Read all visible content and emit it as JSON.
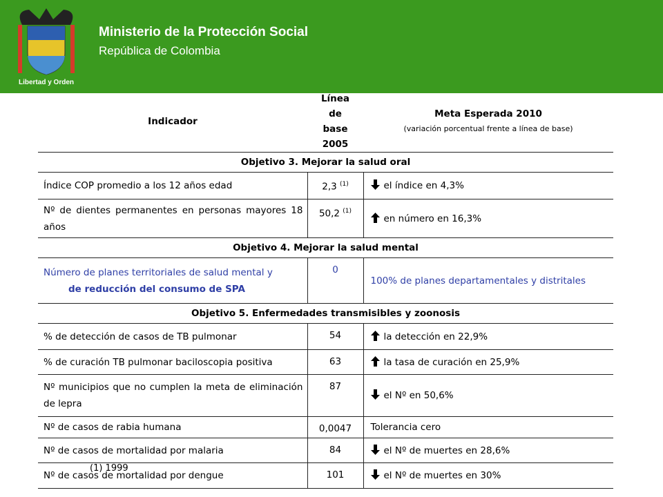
{
  "header": {
    "title": "Ministerio de la Protección Social",
    "subtitle": "República de Colombia",
    "logo_caption": "Libertad y Orden"
  },
  "table": {
    "columns": [
      "Indicador",
      "Línea de base 2005",
      "Meta Esperada 2010"
    ],
    "columns_note": "(variación porcentual frente a línea de base)",
    "sections": [
      {
        "title": "Objetivo 3. Mejorar la salud oral",
        "rows": [
          {
            "indicator": "Índice COP promedio a los 12 años edad",
            "baseline": "2,3",
            "baseline_note": "(1)",
            "goal": "el índice en 4,3%"
          },
          {
            "indicator": "Nº de dientes permanentes en personas mayores 18 años",
            "baseline": "50,2",
            "baseline_note": "(1)",
            "goal": "en número en 16,3%"
          }
        ]
      },
      {
        "title": "Objetivo 4. Mejorar la salud mental",
        "rows": [
          {
            "indicator": "Número de planes territoriales de salud mental y",
            "indicator_bold": "de reducción del consumo de SPA",
            "baseline": "0",
            "goal": "100% de planes departamentales y distritales"
          }
        ]
      },
      {
        "title": "Objetivo 5. Enfermedades transmisibles y zoonosis",
        "rows": [
          {
            "indicator": "% de detección de casos de TB pulmonar",
            "baseline": "54",
            "goal": "la detección en 22,9%"
          },
          {
            "indicator": "% de curación TB pulmonar baciloscopia positiva",
            "baseline": "63",
            "goal": "la tasa de curación en 25,9%"
          },
          {
            "indicator": "Nº municipios que no cumplen la meta de eliminación de lepra",
            "baseline": "87",
            "goal": "el Nº en 50,6%"
          },
          {
            "indicator": "Nº de casos de rabia humana",
            "baseline": "0,0047",
            "goal": "Tolerancia cero"
          },
          {
            "indicator": "Nº de casos de mortalidad por malaria",
            "baseline": "84",
            "goal": "el Nº de muertes en 28,6%"
          },
          {
            "indicator": "Nº de casos de mortalidad por dengue",
            "baseline": "101",
            "goal": "el Nº de muertes en 30%"
          }
        ]
      }
    ]
  },
  "footnote": "(1) 1999"
}
